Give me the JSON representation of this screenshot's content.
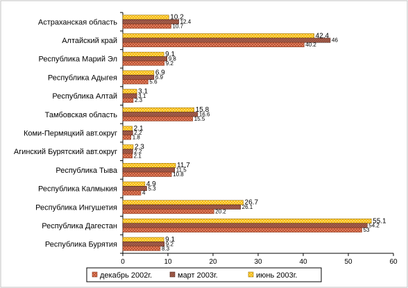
{
  "chart_data": {
    "type": "bar",
    "orientation": "horizontal",
    "categories": [
      "Астраханская область",
      "Алтайский край",
      "Республика Марий Эл",
      "Республика Адыгея",
      "Республика Алтай",
      "Тамбовская область",
      "Коми-Пермяцкий авт.округ",
      "Агинский Бурятский авт.округ",
      "Республика Тыва",
      "Республика Калмыкия",
      "Республика Ингушетия",
      "Республика Дагестан",
      "Республика Бурятия"
    ],
    "series": [
      {
        "name": "декабрь 2002г.",
        "color": "#e8845f",
        "values": [
          10.7,
          40.2,
          9.2,
          5.6,
          2.3,
          15.5,
          1.8,
          2.1,
          10.8,
          4,
          20.2,
          53,
          8.3
        ],
        "labels": [
          "10.7",
          "40.2",
          "9.2",
          "5.6",
          "2.3",
          "15.5",
          "1.8",
          "2.1",
          "10.8",
          "4",
          "20.2",
          "53",
          "8.3"
        ]
      },
      {
        "name": "март 2003г.",
        "color": "#8c4a3a",
        "values": [
          12.4,
          46,
          9.8,
          6.9,
          3.1,
          16.6,
          2.2,
          2.2,
          11.5,
          5.3,
          26.1,
          54.2,
          9.2
        ],
        "labels": [
          "12.4",
          "46",
          "9.8",
          "6.9",
          "3.1",
          "16.6",
          "2.2",
          "2.2",
          "11.5",
          "5.3",
          "26.1",
          "54.2",
          "9.2"
        ]
      },
      {
        "name": "июнь 2003г.",
        "color": "#f5b400",
        "values": [
          10.2,
          42.4,
          9.1,
          6.9,
          3.1,
          15.8,
          2.1,
          2.3,
          11.7,
          4.9,
          26.7,
          55.1,
          9.1
        ],
        "labels": [
          "10.2",
          "42.4",
          "9.1",
          "6.9",
          "3.1",
          "15.8",
          "2.1",
          "2.3",
          "11.7",
          "4.9",
          "26.7",
          "55.1",
          "9.1"
        ]
      }
    ],
    "xlim": [
      0,
      60
    ],
    "xticks": [
      "0",
      "10",
      "20",
      "30",
      "40",
      "50",
      "60"
    ],
    "xtick_values": [
      0,
      10,
      20,
      30,
      40,
      50,
      60
    ],
    "grid": false,
    "legend_position": "bottom",
    "title": "",
    "xlabel": "",
    "ylabel": ""
  }
}
